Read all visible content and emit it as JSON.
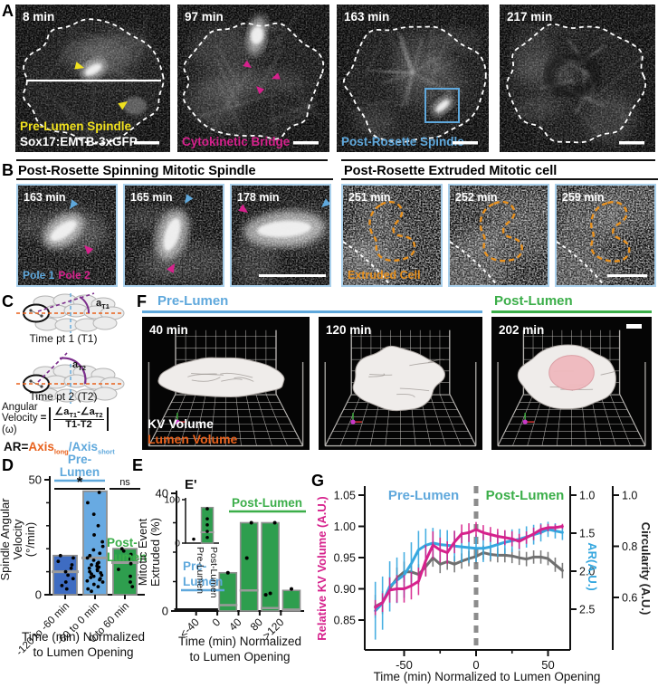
{
  "colors": {
    "blue": "#5FA8DC",
    "ar_blue": "#35A7DF",
    "green": "#3BAE49",
    "magenta": "#D6218C",
    "yellow": "#F0E11E",
    "orange": "#E8911E",
    "orange_red": "#E8611C",
    "gray_series": "#6F6F6F",
    "bar_blue_dark": "#3E6CC2",
    "bar_blue_light": "#68AAE2",
    "bar_green": "#2E9E4E",
    "tile_border_blue": "#A9D0EC",
    "purple": "#7B2D8B",
    "white": "#FFFFFF"
  },
  "panels": {
    "a": {
      "label": "A",
      "images": [
        {
          "time": "8 min",
          "caption_lines": [
            {
              "text": "Pre-Lumen Spindle",
              "color_key": "yellow"
            },
            {
              "text": "Sox17:EMTB-3xGFP",
              "color_key": "white"
            }
          ],
          "features": [
            "kv-outline-dashed",
            "embryo-midline",
            "pre-lumen-spindle",
            "yellow-arrowheads",
            "scale-bar"
          ]
        },
        {
          "time": "97 min",
          "caption_lines": [
            {
              "text": "Cytokinetic Bridge",
              "color_key": "magenta"
            }
          ],
          "features": [
            "kv-outline-dashed",
            "bright-cell-top",
            "magenta-arrowheads",
            "scale-bar"
          ]
        },
        {
          "time": "163 min",
          "caption_lines": [
            {
              "text": "Post-Rosette Spindle",
              "color_key": "blue"
            }
          ],
          "features": [
            "kv-outline-dashed",
            "center-aster",
            "spindle-roi-box",
            "scale-bar"
          ]
        },
        {
          "time": "217 min",
          "caption_lines": [],
          "features": [
            "kv-outline-dashed",
            "center-swirl",
            "scale-bar"
          ]
        }
      ]
    },
    "b": {
      "label": "B",
      "group1_title": "Post-Rosette Spinning Mitotic Spindle",
      "group2_title": "Post-Rosette Extruded Mitotic cell",
      "pole1": "Pole 1",
      "pole2": "Pole 2",
      "extruded": "Extruded Cell",
      "images": [
        {
          "time": "163 min",
          "features": [
            "spindle-tilted",
            "pole1-arrowhead",
            "pole2-arrowhead",
            "pole-legend"
          ]
        },
        {
          "time": "165 min",
          "features": [
            "spindle-vertical",
            "pole1-arrowhead",
            "pole2-arrowhead"
          ]
        },
        {
          "time": "178 min",
          "features": [
            "spindle-horizontal",
            "pole1-arrowhead",
            "pole2-arrowhead",
            "scale-bar"
          ]
        },
        {
          "time": "251 min",
          "features": [
            "extruded-cell-outline-dashed",
            "kv-edge-dashed",
            "extruded-label"
          ]
        },
        {
          "time": "252 min",
          "features": [
            "extruded-cell-outline-dashed",
            "kv-edge-dashed"
          ]
        },
        {
          "time": "259 min",
          "features": [
            "extruded-cell-outline-dashed",
            "kv-edge-dashed",
            "scale-bar"
          ]
        }
      ]
    },
    "c": {
      "label": "C",
      "caption1": "Time pt 1 (T1)",
      "caption2": "Time pt 2 (T2)",
      "angle_letter": "a",
      "angle_sub1": "T1",
      "angle_sub2": "T2",
      "formula": {
        "lhs1": "Angular",
        "lhs2": "Velocity",
        "lhs3": "(ω)",
        "eq": "=",
        "num_a": "∠a",
        "num_sub_a": "T1",
        "num_b": "-∠a",
        "num_sub_b": "T2",
        "den": "T1-T2"
      },
      "ar": {
        "prefix": "AR=",
        "axis1": "Axis",
        "axis1_sub": "long",
        "slash": "/",
        "axis2": "Axis",
        "axis2_sub": "short"
      }
    },
    "f": {
      "label": "F",
      "pre_lumen": "Pre-Lumen",
      "post_lumen": "Post-Lumen",
      "kv_volume": "KV Volume",
      "lumen_volume": "Lumen Volume",
      "images": [
        {
          "time": "40 min",
          "features": [
            "grid-box",
            "kv-surface-elongated",
            "axis-gizmo",
            "volume-legend"
          ]
        },
        {
          "time": "120 min",
          "features": [
            "grid-box",
            "kv-surface-round-spiky",
            "axis-gizmo"
          ]
        },
        {
          "time": "202 min",
          "features": [
            "grid-box",
            "kv-surface-round",
            "lumen-surface-pink",
            "axis-gizmo",
            "scale-bar"
          ]
        }
      ]
    },
    "d_label": "D",
    "e_label": "E",
    "e_inset_label": "E'",
    "g_label": "G"
  },
  "chart_data": [
    {
      "id": "panel_d",
      "type": "bar",
      "ylabel_lines": [
        "Spindle Angular",
        "Velocity",
        "(°/min)"
      ],
      "xlabel_lines": [
        "Time (min) Normalized",
        "to Lumen Opening"
      ],
      "categories": [
        "-120 to -60 min",
        "-60 to 0 min",
        "0 to 60 min"
      ],
      "values": [
        17,
        45,
        20
      ],
      "medians": [
        10,
        16,
        14
      ],
      "bar_color_keys": [
        "bar_blue_dark",
        "bar_blue_light",
        "bar_green"
      ],
      "points": [
        [
          2.5,
          4,
          5.5,
          7,
          8.5,
          10,
          11.5,
          13,
          14.5,
          16,
          17
        ],
        [
          1.5,
          2.5,
          3.5,
          4.5,
          5.5,
          6,
          6.5,
          7,
          7.5,
          8,
          8.5,
          9,
          9.5,
          10,
          10.5,
          11,
          11.5,
          12,
          12.5,
          13,
          13.5,
          14,
          15,
          16,
          17,
          18,
          19.5,
          21,
          23,
          26,
          30,
          35,
          40,
          44.5
        ],
        [
          3.5,
          5.5,
          8,
          11,
          13.5,
          15.5,
          17.5,
          19,
          20
        ]
      ],
      "ylim": [
        0,
        50
      ],
      "yticks": [
        0,
        50
      ],
      "yticks_minor": [
        10,
        20,
        30,
        40
      ],
      "annotations": {
        "group1a": "Pre-",
        "group1b": "Lumen",
        "group2a": "Post-",
        "group2b": "Lumen",
        "sig_12": "*",
        "sig_23": "ns"
      }
    },
    {
      "id": "panel_e",
      "type": "bar",
      "ylabel_lines": [
        "Mitotic Event",
        "Extruded (%)"
      ],
      "xlabel_lines": [
        "Time (min) Normalized",
        "to Lumen Opening"
      ],
      "tick_labels": [
        "<-40",
        "0",
        "40",
        "80",
        ">120"
      ],
      "values": [
        0,
        0,
        13,
        30,
        30,
        7
      ],
      "medians": [
        0,
        0,
        2,
        7,
        1,
        0.5
      ],
      "points": [
        [],
        [],
        [
          13
        ],
        [
          18,
          30
        ],
        [
          5.5,
          6,
          30
        ],
        [
          7.5
        ]
      ],
      "ylim": [
        0,
        40
      ],
      "yticks": [
        0,
        40
      ],
      "yticks_minor": [
        10,
        20,
        30
      ],
      "annotations": {
        "pre1": "Pre-",
        "pre2": "Lumen",
        "post": "Post-Lumen"
      }
    },
    {
      "id": "panel_e_inset",
      "type": "bar",
      "categories": [
        "Pre-Lumen",
        "Post-Lumen"
      ],
      "values": [
        0,
        82
      ],
      "medians": [
        null,
        25
      ],
      "points": [
        [
          9
        ],
        [
          13,
          27,
          42,
          56,
          79
        ]
      ],
      "ylim": [
        0,
        100
      ],
      "yticks": [
        0,
        100
      ]
    },
    {
      "id": "panel_g",
      "type": "line",
      "pre_label": "Pre-Lumen",
      "post_label": "Post-Lumen",
      "xlabel": "Time (min) Normalized to Lumen Opening",
      "x_ticks": [
        -50,
        0,
        50
      ],
      "x_ticks_minor": [
        -25,
        25
      ],
      "xlim": [
        -77,
        65
      ],
      "vline_x": 0,
      "axes": [
        {
          "id": "kv",
          "label": "Relative KV Volume (A.U.)",
          "color_key": "magenta",
          "ticks": [
            "1.05",
            "1.00",
            "0.95",
            "0.90",
            "0.85"
          ]
        },
        {
          "id": "ar",
          "label": "AR(A.U.)",
          "color_key": "ar_blue",
          "ticks": [
            "1.0",
            "1.5",
            "2.0",
            "2.5"
          ]
        },
        {
          "id": "circ",
          "label": "Circularity (A.U.)",
          "color_key": "gray_series",
          "ticks": [
            "1.0",
            "0.8",
            "0.6"
          ]
        }
      ],
      "x": [
        -70,
        -65,
        -60,
        -55,
        -50,
        -45,
        -40,
        -35,
        -30,
        -25,
        -20,
        -15,
        -10,
        -5,
        0,
        5,
        10,
        15,
        20,
        25,
        30,
        35,
        40,
        45,
        50,
        55,
        60
      ],
      "series": [
        {
          "name": "Relative KV Volume",
          "axis": "kv",
          "color_key": "magenta",
          "y": [
            0.87,
            0.878,
            0.898,
            0.9,
            0.9,
            0.905,
            0.912,
            0.945,
            0.97,
            0.962,
            0.958,
            0.975,
            0.988,
            0.99,
            0.995,
            0.99,
            0.987,
            0.984,
            0.982,
            0.98,
            0.976,
            0.982,
            0.988,
            0.995,
            0.998,
            0.998,
            1.0
          ],
          "err": [
            0.012,
            0.015,
            0.02,
            0.022,
            0.022,
            0.022,
            0.022,
            0.025,
            0.022,
            0.02,
            0.018,
            0.018,
            0.015,
            0.015,
            0.012,
            0.012,
            0.012,
            0.012,
            0.012,
            0.012,
            0.012,
            0.01,
            0.01,
            0.008,
            0.006,
            0.005,
            0.004
          ]
        },
        {
          "name": "AR",
          "axis": "ar",
          "color_key": "ar_blue",
          "y": [
            2.52,
            2.42,
            2.2,
            2.12,
            2.05,
            1.9,
            1.72,
            1.66,
            1.63,
            1.65,
            1.66,
            1.67,
            1.68,
            1.69,
            1.7,
            1.7,
            1.68,
            1.65,
            1.62,
            1.6,
            1.58,
            1.55,
            1.52,
            1.49,
            1.45,
            1.47,
            1.49
          ],
          "err": [
            0.38,
            0.35,
            0.33,
            0.3,
            0.3,
            0.28,
            0.25,
            0.22,
            0.2,
            0.2,
            0.2,
            0.2,
            0.2,
            0.2,
            0.18,
            0.18,
            0.17,
            0.16,
            0.15,
            0.15,
            0.14,
            0.14,
            0.13,
            0.12,
            0.1,
            0.1,
            0.1
          ]
        },
        {
          "name": "Circularity",
          "axis": "circ",
          "color_key": "gray_series",
          "y": [
            0.565,
            0.58,
            0.635,
            0.675,
            0.7,
            0.7,
            0.69,
            0.72,
            0.755,
            0.73,
            0.74,
            0.73,
            0.742,
            0.752,
            0.76,
            0.775,
            0.768,
            0.765,
            0.765,
            0.762,
            0.755,
            0.75,
            0.758,
            0.758,
            0.752,
            0.728,
            0.705
          ],
          "err": [
            0.045,
            0.045,
            0.045,
            0.042,
            0.04,
            0.04,
            0.04,
            0.038,
            0.035,
            0.035,
            0.032,
            0.032,
            0.03,
            0.03,
            0.028,
            0.028,
            0.028,
            0.028,
            0.028,
            0.028,
            0.028,
            0.028,
            0.026,
            0.026,
            0.026,
            0.028,
            0.03
          ]
        }
      ]
    }
  ]
}
